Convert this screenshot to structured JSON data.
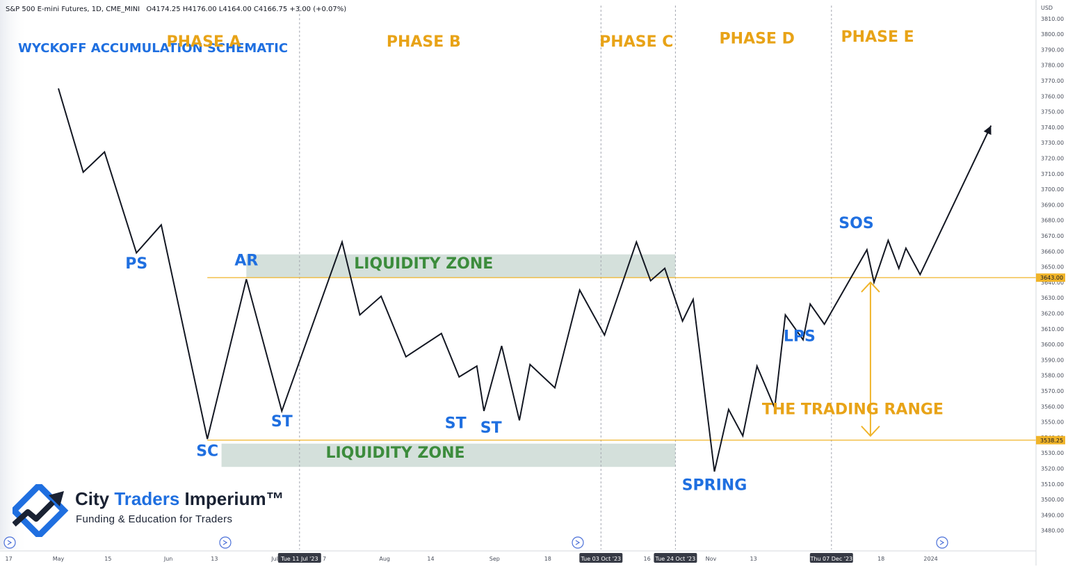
{
  "header": {
    "symbol": "S&P 500 E-mini Futures, 1D, CME_MINI",
    "ohlc": "O4174.25  H4176.00  L4164.00  C4166.75  +3.00 (+0.07%)"
  },
  "currency": "USD",
  "title": "WYCKOFF ACCUMULATION SCHEMATIC",
  "brand": {
    "name_part1": "City",
    "name_part2": "Traders",
    "name_part3": "Imperium™",
    "tagline": "Funding & Education for Traders"
  },
  "colors": {
    "background": "#ffffff",
    "title_blue": "#1f6fe0",
    "phase_orange": "#e8a317",
    "event_blue": "#1f6fe0",
    "zone_green": "#3c8c3c",
    "zone_fill": "#c5d6cf",
    "price_line": "#131722",
    "level_line": "#f0b429"
  },
  "chart_data": {
    "type": "line",
    "title": "WYCKOFF ACCUMULATION SCHEMATIC",
    "xlabel": "",
    "ylabel": "",
    "ylim": [
      3475,
      3815
    ],
    "y_ticks": [
      3810,
      3800,
      3790,
      3780,
      3770,
      3760,
      3750,
      3740,
      3730,
      3720,
      3710,
      3700,
      3690,
      3680,
      3670,
      3660,
      3650,
      3640,
      3630,
      3620,
      3610,
      3600,
      3590,
      3580,
      3570,
      3560,
      3550,
      3540,
      3530,
      3520,
      3510,
      3500,
      3490,
      3480
    ],
    "x_ticks": [
      {
        "label": "17",
        "d": 0
      },
      {
        "label": "May",
        "d": 14
      },
      {
        "label": "15",
        "d": 28
      },
      {
        "label": "Jun",
        "d": 45
      },
      {
        "label": "13",
        "d": 58
      },
      {
        "label": "Jul",
        "d": 75
      },
      {
        "label": "7",
        "d": 89
      },
      {
        "label": "Aug",
        "d": 106
      },
      {
        "label": "14",
        "d": 119
      },
      {
        "label": "Sep",
        "d": 137
      },
      {
        "label": "18",
        "d": 152
      },
      {
        "label": "16",
        "d": 180
      },
      {
        "label": "Nov",
        "d": 198
      },
      {
        "label": "13",
        "d": 210
      },
      {
        "label": "D",
        "d": 228
      },
      {
        "label": "18",
        "d": 246
      },
      {
        "label": "2024",
        "d": 260
      }
    ],
    "x_flags": [
      {
        "label": "Tue 11 Jul '23",
        "d": 82
      },
      {
        "label": "Tue 03 Oct '23",
        "d": 167
      },
      {
        "label": "Tue 24 Oct '23",
        "d": 188
      },
      {
        "label": "Thu 07 Dec '23",
        "d": 232
      }
    ],
    "vlines_d": [
      82,
      167,
      188,
      232
    ],
    "price_labels": [
      {
        "label": "3643.00",
        "value": 3643
      },
      {
        "label": "3538.25",
        "value": 3538.25
      }
    ],
    "horizontal_levels": [
      3643,
      3538.25
    ],
    "series": [
      {
        "points": [
          [
            14,
            3765
          ],
          [
            21,
            3711
          ],
          [
            27,
            3724
          ],
          [
            36,
            3659
          ],
          [
            43,
            3677
          ],
          [
            56,
            3539
          ],
          [
            67,
            3642
          ],
          [
            77,
            3557
          ],
          [
            94,
            3666
          ],
          [
            99,
            3619
          ],
          [
            105,
            3631
          ],
          [
            112,
            3592
          ],
          [
            122,
            3607
          ],
          [
            127,
            3579
          ],
          [
            132,
            3586
          ],
          [
            134,
            3557
          ],
          [
            139,
            3599
          ],
          [
            144,
            3551
          ],
          [
            147,
            3587
          ],
          [
            154,
            3572
          ],
          [
            161,
            3635
          ],
          [
            168,
            3606
          ],
          [
            177,
            3666
          ],
          [
            181,
            3641
          ],
          [
            185,
            3649
          ],
          [
            190,
            3615
          ],
          [
            193,
            3629
          ],
          [
            199,
            3518
          ],
          [
            203,
            3558
          ],
          [
            207,
            3541
          ],
          [
            211,
            3586
          ],
          [
            216,
            3559
          ],
          [
            219,
            3619
          ],
          [
            224,
            3603
          ],
          [
            226,
            3626
          ],
          [
            230,
            3613
          ],
          [
            242,
            3661
          ],
          [
            244,
            3640
          ],
          [
            248,
            3667
          ],
          [
            251,
            3649
          ],
          [
            253,
            3662
          ],
          [
            257,
            3645
          ],
          [
            277,
            3741
          ]
        ]
      }
    ],
    "phases": [
      {
        "label": "PHASE A",
        "d": 55,
        "value": 3792
      },
      {
        "label": "PHASE B",
        "d": 117,
        "value": 3792
      },
      {
        "label": "PHASE C",
        "d": 177,
        "value": 3792
      },
      {
        "label": "PHASE D",
        "d": 211,
        "value": 3794
      },
      {
        "label": "PHASE E",
        "d": 245,
        "value": 3795
      }
    ],
    "events": [
      {
        "label": "PS",
        "d": 36,
        "value": 3649
      },
      {
        "label": "AR",
        "d": 67,
        "value": 3651
      },
      {
        "label": "SC",
        "d": 56,
        "value": 3528
      },
      {
        "label": "ST",
        "d": 77,
        "value": 3547
      },
      {
        "label": "ST",
        "d": 126,
        "value": 3546
      },
      {
        "label": "ST",
        "d": 136,
        "value": 3543
      },
      {
        "label": "SPRING",
        "d": 199,
        "value": 3506
      },
      {
        "label": "LPS",
        "d": 223,
        "value": 3602
      },
      {
        "label": "SOS",
        "d": 239,
        "value": 3675
      }
    ],
    "zones": [
      {
        "label": "LIQUIDITY ZONE",
        "d_start": 67,
        "d_end": 188,
        "y_top": 3658,
        "y_bottom": 3643,
        "label_d": 117,
        "label_value": 3649
      },
      {
        "label": "LIQUIDITY ZONE",
        "d_start": 60,
        "d_end": 188,
        "y_top": 3536,
        "y_bottom": 3521,
        "label_d": 109,
        "label_value": 3527
      }
    ],
    "range_annotation": {
      "label": "THE TRADING RANGE",
      "d": 238,
      "value": 3555,
      "arrow_d": 243,
      "from": 3640,
      "to": 3541
    }
  }
}
